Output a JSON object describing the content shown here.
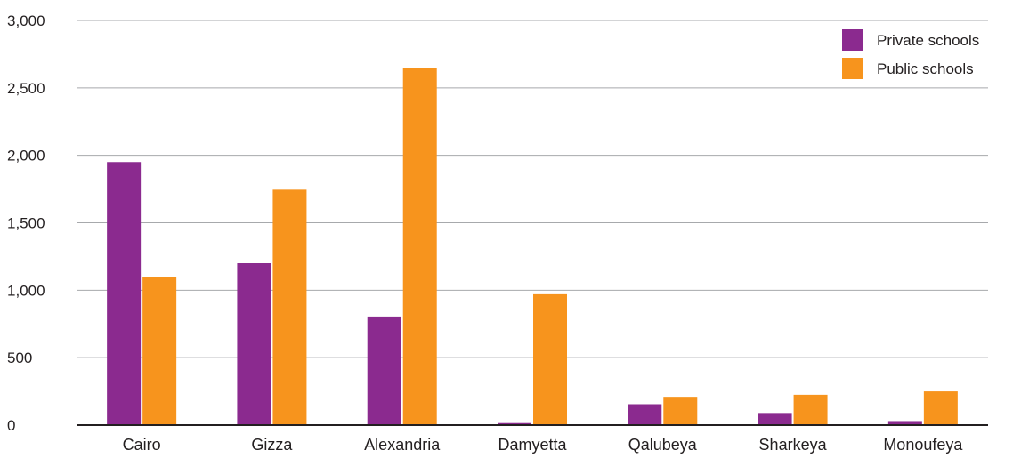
{
  "chart_data": {
    "type": "bar",
    "title": "",
    "xlabel": "",
    "ylabel": "",
    "categories": [
      "Cairo",
      "Gizza",
      "Alexandria",
      "Damyetta",
      "Qalubeya",
      "Sharkeya",
      "Monoufeya"
    ],
    "series": [
      {
        "name": "Private schools",
        "color": "#8b2a8f",
        "values": [
          1950,
          1200,
          805,
          15,
          155,
          90,
          30
        ]
      },
      {
        "name": "Public schools",
        "color": "#f7941d",
        "values": [
          1100,
          1745,
          2650,
          970,
          210,
          225,
          250
        ]
      }
    ],
    "ylim": [
      0,
      3000
    ],
    "yticks": [
      0,
      500,
      1000,
      1500,
      2000,
      2500,
      3000
    ],
    "ytick_labels": [
      "0",
      "500",
      "1,000",
      "1,500",
      "2,000",
      "2,500",
      "3,000"
    ],
    "grid": true,
    "legend_position": "top-right"
  }
}
